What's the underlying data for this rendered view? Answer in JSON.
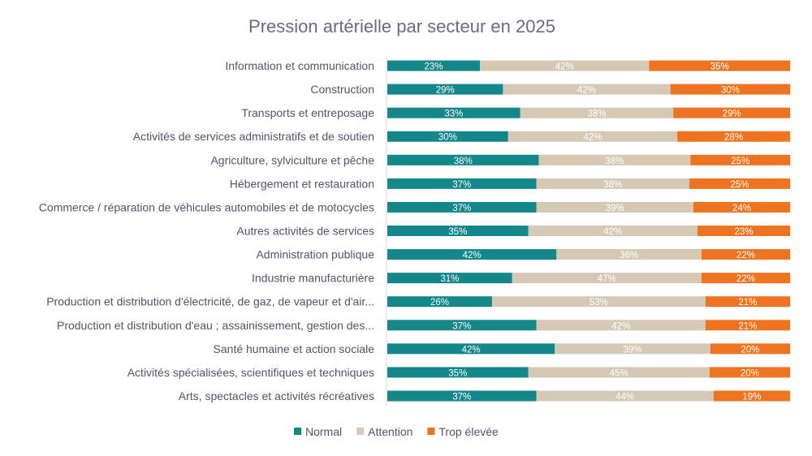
{
  "chart_data": {
    "type": "bar",
    "orientation": "horizontal",
    "stacked": "percent",
    "title": "Pression artérielle par secteur en 2025",
    "categories": [
      "Information et communication",
      "Construction",
      "Transports et entreposage",
      "Activités de services administratifs et de soutien",
      "Agriculture, sylviculture et pêche",
      "Hébergement et restauration",
      "Commerce / réparation de véhicules automobiles et de motocycles",
      "Autres activités de services",
      "Administration publique",
      "Industrie manufacturière",
      "Production et distribution d'électricité, de gaz, de vapeur et d'air...",
      "Production et distribution d'eau ; assainissement, gestion des...",
      "Santé humaine et action sociale",
      "Activités spécialisées, scientifiques et techniques",
      "Arts, spectacles et activités récréatives"
    ],
    "series": [
      {
        "name": "Normal",
        "color": "#14878a",
        "values": [
          23,
          29,
          33,
          30,
          38,
          37,
          37,
          35,
          42,
          31,
          26,
          37,
          42,
          35,
          37
        ]
      },
      {
        "name": "Attention",
        "color": "#d5c8b4",
        "values": [
          42,
          42,
          38,
          42,
          38,
          38,
          39,
          42,
          36,
          47,
          53,
          42,
          39,
          45,
          44
        ]
      },
      {
        "name": "Trop élevée",
        "color": "#ee7422",
        "values": [
          35,
          30,
          29,
          28,
          25,
          25,
          24,
          23,
          22,
          22,
          21,
          21,
          20,
          20,
          19
        ]
      }
    ],
    "value_format": "%",
    "xlim": [
      0,
      100
    ],
    "grid": false,
    "legend": "bottom"
  }
}
